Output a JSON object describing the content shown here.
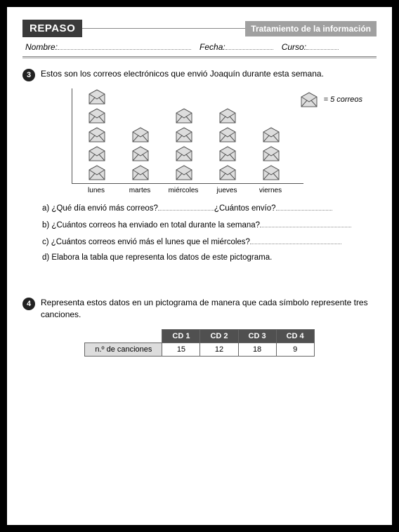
{
  "header": {
    "repaso": "REPASO",
    "topic": "Tratamiento de la información",
    "nombre_label": "Nombre:",
    "fecha_label": "Fecha:",
    "curso_label": "Curso:"
  },
  "q3": {
    "number": "3",
    "text": "Estos son los correos electrónicos que envió Joaquín durante esta semana.",
    "legend_text": "= 5 correos",
    "days": [
      "lunes",
      "martes",
      "miércoles",
      "jueves",
      "viernes"
    ],
    "counts": [
      5,
      3,
      4,
      4,
      3
    ],
    "icon_color": "#cccccc",
    "icon_stroke": "#555555",
    "sub": {
      "a_prefix": "a) ¿Qué día envió más correos?",
      "a_mid": "¿Cuántos envío?",
      "b": "b) ¿Cuántos correos ha enviado en total durante la semana?",
      "c": "c) ¿Cuántos correos envió más el lunes que el miércoles?",
      "d": "d) Elabora la tabla que representa los datos de este pictograma."
    }
  },
  "q4": {
    "number": "4",
    "text": "Representa estos datos en un pictograma de manera que cada símbolo represente tres canciones.",
    "row_label": "n.º de canciones",
    "table": {
      "headers": [
        "CD 1",
        "CD 2",
        "CD 3",
        "CD 4"
      ],
      "values": [
        "15",
        "12",
        "18",
        "9"
      ],
      "header_bg": "#505050",
      "header_fg": "#ffffff",
      "label_bg": "#dddddd"
    }
  }
}
